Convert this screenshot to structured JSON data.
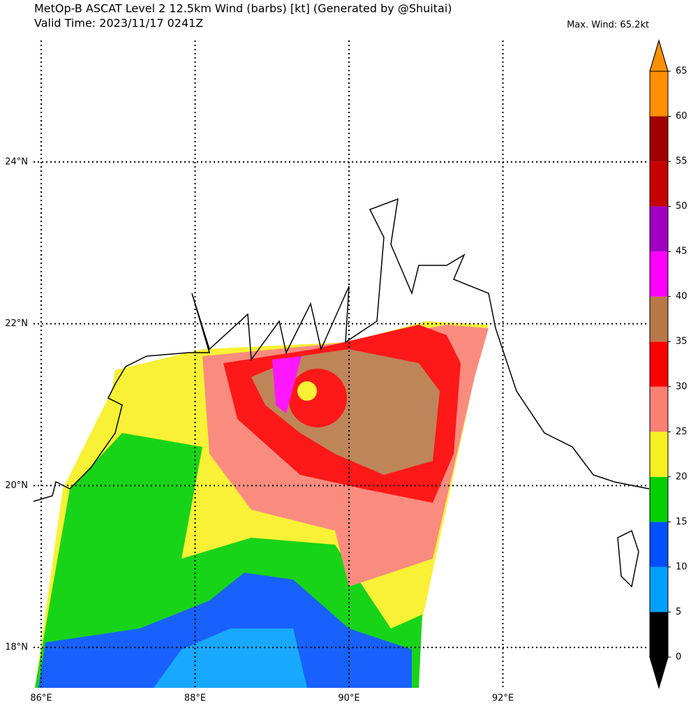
{
  "title": "MetOp-B ASCAT Level 2 12.5km Wind (barbs) [kt] (Generated by @Shuitai)",
  "subtitle": "Valid Time: 2023/11/17 0241Z",
  "max_wind": "Max. Wind: 65.2kt",
  "map": {
    "xlim": [
      85.9,
      93.9
    ],
    "ylim": [
      17.5,
      25.5
    ],
    "xticks": [
      {
        "value": 86,
        "label": "86°E"
      },
      {
        "value": 88,
        "label": "88°E"
      },
      {
        "value": 90,
        "label": "90°E"
      },
      {
        "value": 92,
        "label": "92°E"
      }
    ],
    "yticks": [
      {
        "value": 18,
        "label": "18°N"
      },
      {
        "value": 20,
        "label": "20°N"
      },
      {
        "value": 22,
        "label": "22°N"
      },
      {
        "value": 24,
        "label": "24°N"
      }
    ],
    "grid": true
  },
  "colorbar": {
    "levels": [
      0,
      5,
      10,
      15,
      20,
      25,
      30,
      35,
      40,
      45,
      50,
      55,
      60,
      65
    ],
    "colors": [
      "#000000",
      "#00a0ff",
      "#0050ff",
      "#00d000",
      "#f8f020",
      "#fa8072",
      "#ff0000",
      "#b87848",
      "#ff00ff",
      "#a000c0",
      "#c80000",
      "#a00000",
      "#ff9000"
    ]
  }
}
